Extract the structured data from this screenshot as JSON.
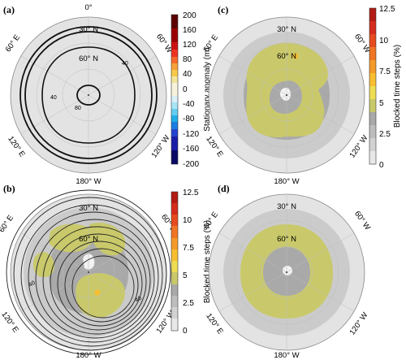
{
  "panels": {
    "a": {
      "label": "(a)",
      "lon_labels": [
        "0°",
        "60° E",
        "60° W",
        "120° E",
        "120° W",
        "180° W"
      ],
      "lat_labels": [
        "30° N",
        "60° N"
      ],
      "contour_labels": [
        "40",
        "40",
        "80"
      ],
      "colorbar": {
        "title": "Stationary anomaly (m)",
        "ticks": [
          "200",
          "160",
          "120",
          "80",
          "40",
          "0",
          "-40",
          "-80",
          "-120",
          "-160",
          "-200"
        ],
        "colors": [
          "#5a0000",
          "#9b0000",
          "#cc1111",
          "#ee3322",
          "#f56a2a",
          "#f8a03a",
          "#f7c84a",
          "#f2e69a",
          "#f6f2dc",
          "#d8f0f8",
          "#a8e4f4",
          "#62cdef",
          "#1faee6",
          "#1d7ce0",
          "#2442d0",
          "#1a1aa8",
          "#0a0a66"
        ]
      }
    },
    "b": {
      "label": "(b)",
      "lon_labels": [
        "60° E",
        "60° W",
        "120° E",
        "120° W",
        "180° W"
      ],
      "lat_labels": [
        "30° N",
        "60° N"
      ],
      "contour_labels": [
        "40",
        "40"
      ],
      "colorbar": {
        "title": "Blocked time steps (%)",
        "ticks": [
          "12.5",
          "10",
          "7.5",
          "5",
          "2.5",
          "0"
        ],
        "colors": [
          "#b21a12",
          "#d42b1c",
          "#e64a1e",
          "#f07524",
          "#f59a2a",
          "#f7be30",
          "#eedd52",
          "#c9c96b",
          "#a9a9a9",
          "#bdbdbd",
          "#d2d2d2",
          "#e8e8e8"
        ]
      }
    },
    "c": {
      "label": "(c)",
      "lon_labels": [
        "60° E",
        "60° W",
        "120° E",
        "120° W",
        "180° W"
      ],
      "lat_labels": [
        "30° N",
        "60° N"
      ],
      "colorbar": {
        "title": "Blocked time steps (%)",
        "ticks": [
          "12.5",
          "10",
          "7.5",
          "5",
          "2.5",
          "0"
        ],
        "colors": [
          "#b21a12",
          "#d42b1c",
          "#e64a1e",
          "#f07524",
          "#f59a2a",
          "#f7be30",
          "#eedd52",
          "#c9c96b",
          "#a9a9a9",
          "#bdbdbd",
          "#d2d2d2",
          "#e8e8e8"
        ]
      }
    },
    "d": {
      "label": "(d)",
      "lon_labels": [
        "60° E",
        "60° W",
        "120° E",
        "120° W",
        "180° W"
      ],
      "lat_labels": [
        "30° N",
        "60° N"
      ]
    }
  },
  "colors": {
    "map_outer": "#e3e3e3",
    "ring_mid": "#cbcbcb",
    "ring_inner": "#a9a9a9",
    "block_yellow": "#c9c96b",
    "block_orange": "#f7be30",
    "pole_light": "#f2f2f2"
  }
}
